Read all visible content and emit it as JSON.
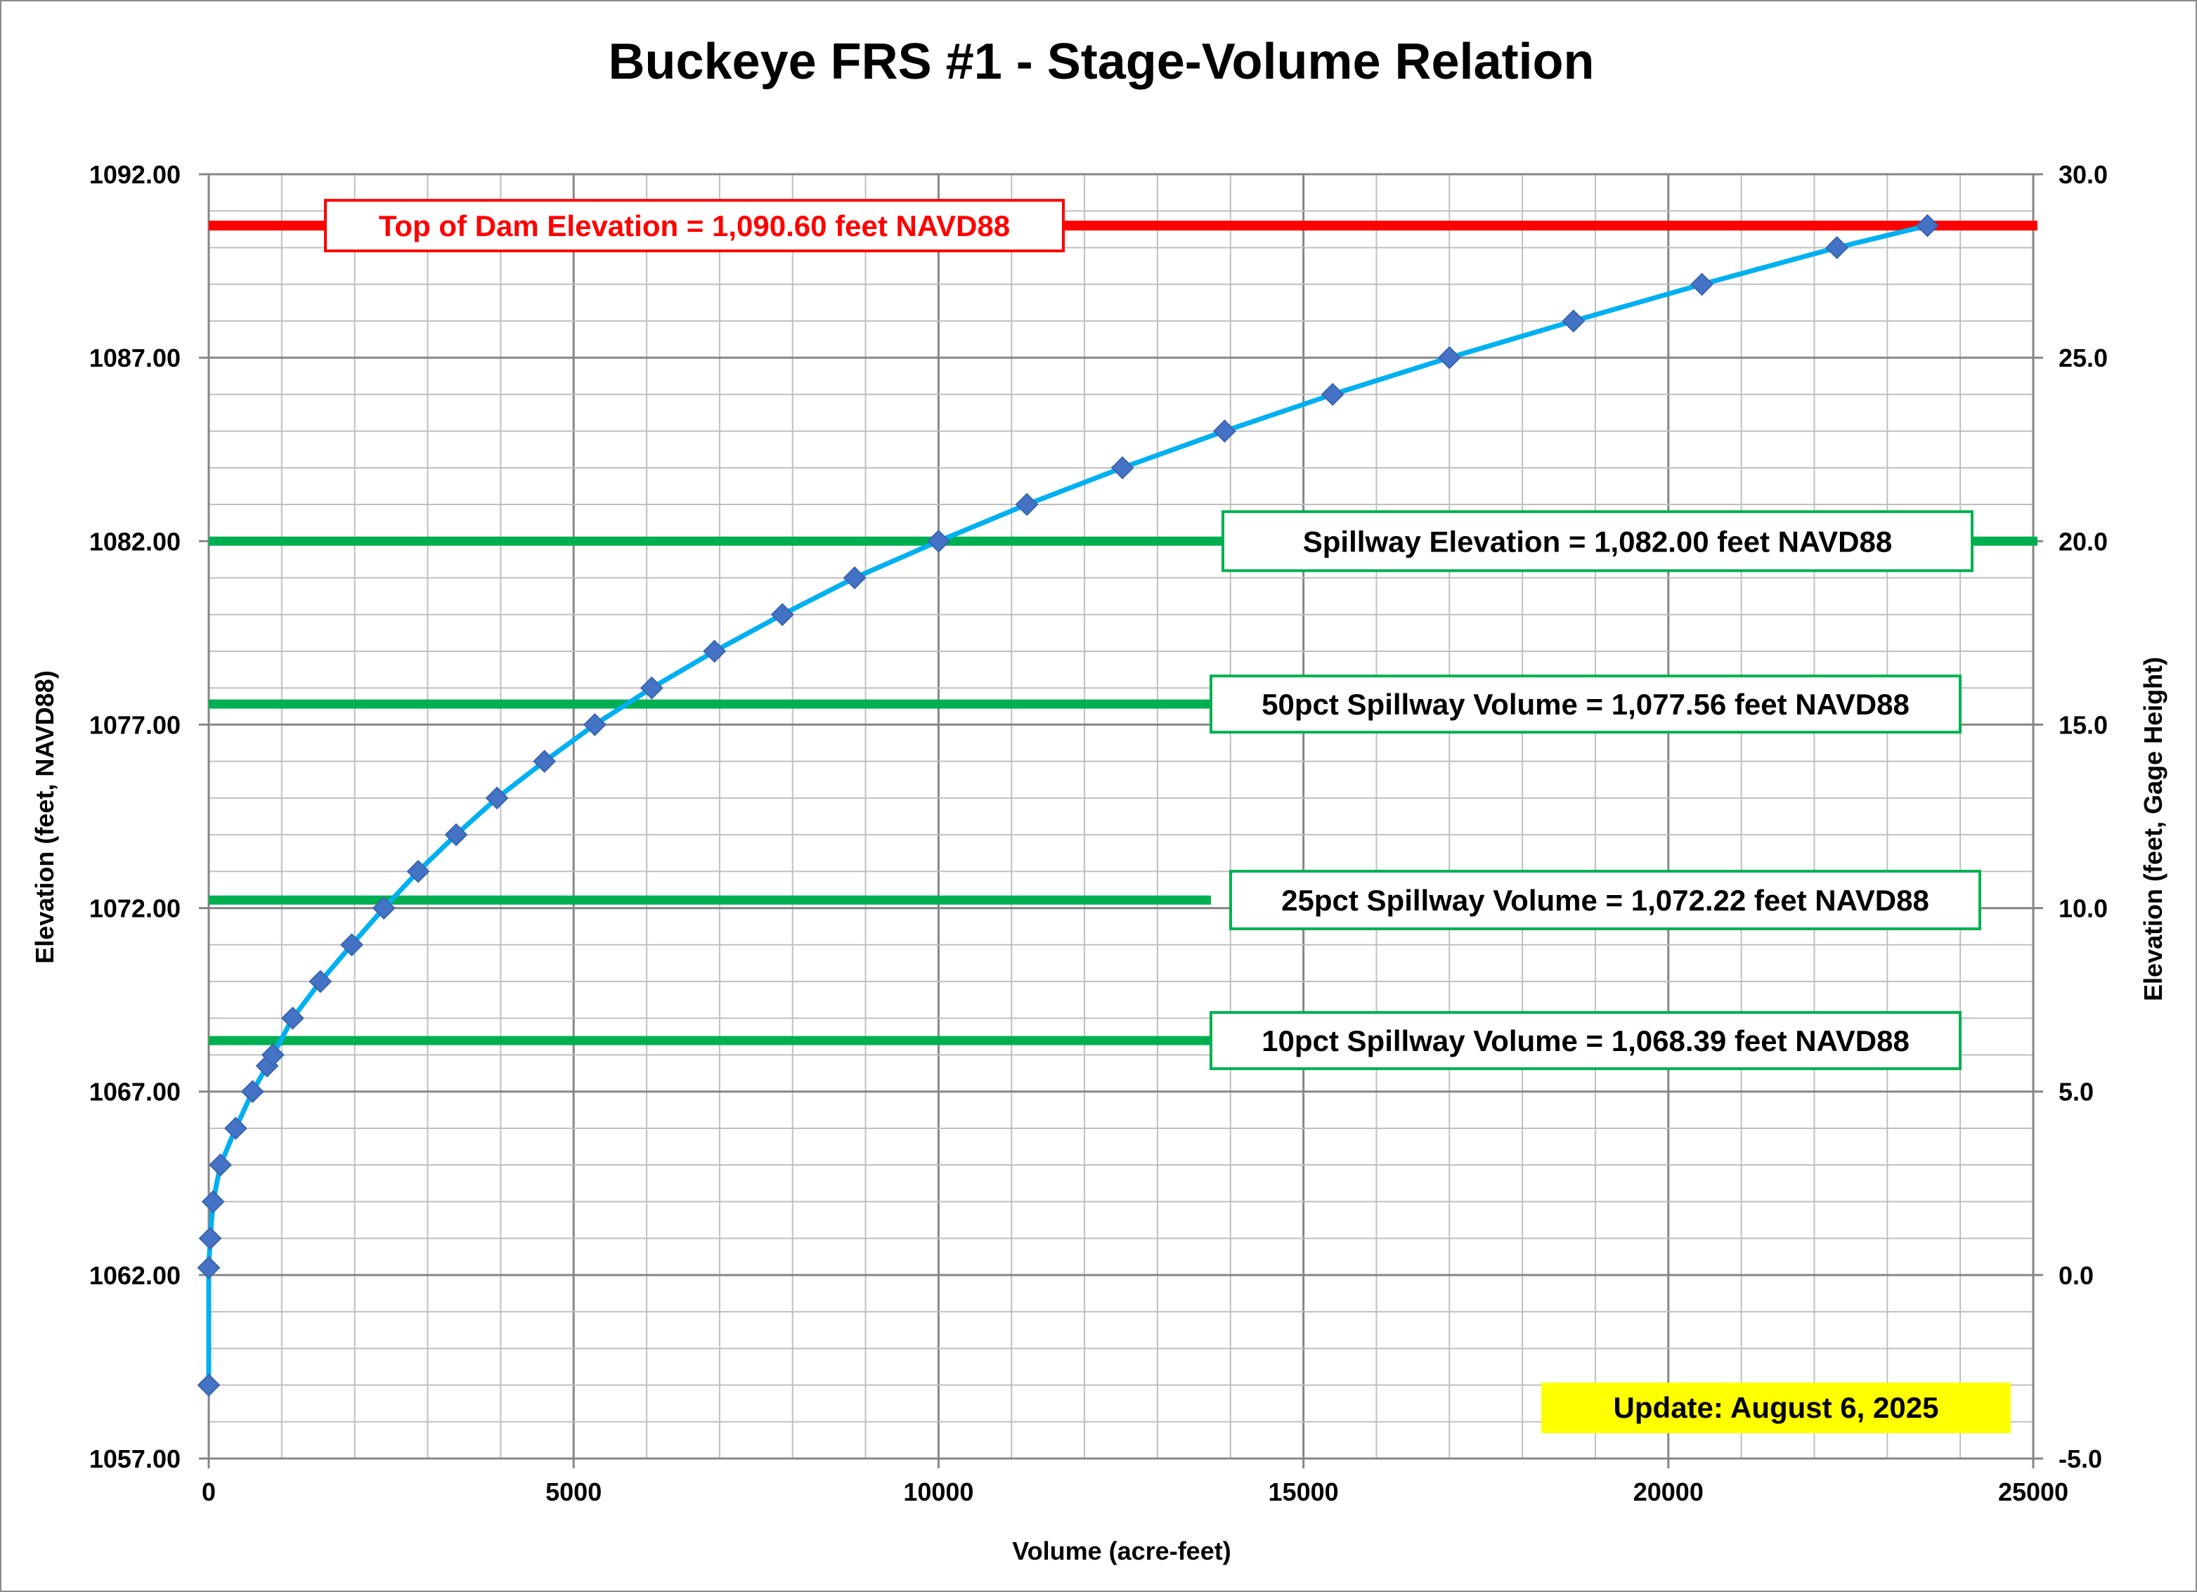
{
  "chart_data": {
    "type": "scatter",
    "title": "Buckeye FRS #1 - Stage-Volume Relation",
    "xlabel": "Volume (acre-feet)",
    "ylabel": "Elevation (feet, NAVD88)",
    "y2label": "Elevation (feet, Gage Height)",
    "xlim": [
      0,
      25000
    ],
    "ylim": [
      1057,
      1092
    ],
    "y2lim": [
      -5,
      30
    ],
    "x_ticks": [
      "0",
      "5000",
      "10000",
      "15000",
      "20000",
      "25000"
    ],
    "y_ticks": [
      "1057.00",
      "1062.00",
      "1067.00",
      "1072.00",
      "1077.00",
      "1082.00",
      "1087.00",
      "1092.00"
    ],
    "y2_ticks": [
      "-5.0",
      "0.0",
      "5.0",
      "10.0",
      "15.0",
      "20.0",
      "25.0",
      "30.0"
    ],
    "grid": true,
    "series": [
      {
        "color": "#00b0f0",
        "marker_color": "#4472c4",
        "x": [
          0,
          0,
          20,
          60,
          160,
          370,
          600,
          800,
          880,
          1150,
          1530,
          1960,
          2400,
          2870,
          3390,
          3950,
          4600,
          5290,
          6070,
          6930,
          7860,
          8850,
          10000,
          11210,
          12520,
          13920,
          15400,
          17000,
          18700,
          20460,
          22310,
          23550
        ],
        "y": [
          1059,
          1062.2,
          1063,
          1064,
          1065,
          1066,
          1067,
          1067.7,
          1068,
          1069,
          1070,
          1071,
          1072,
          1073,
          1074,
          1075,
          1076,
          1077,
          1078,
          1079,
          1080,
          1081,
          1082,
          1083,
          1084,
          1085,
          1086,
          1087,
          1088,
          1089,
          1090,
          1090.6
        ]
      }
    ],
    "reference_lines": [
      {
        "y": 1090.6,
        "label": "Top of Dam Elevation = 1,090.60 feet NAVD88",
        "color": "#ff0000",
        "x_start": 0
      },
      {
        "y": 1082.0,
        "label": "Spillway Elevation = 1,082.00 feet NAVD88",
        "color": "#00b050",
        "x_start": 0
      },
      {
        "y": 1077.56,
        "label": "50pct Spillway Volume = 1,077.56 feet NAVD88",
        "color": "#00b050",
        "x_start": 0
      },
      {
        "y": 1072.22,
        "label": "25pct Spillway Volume = 1,072.22 feet NAVD88",
        "color": "#00b050",
        "x_start": 0
      },
      {
        "y": 1068.39,
        "label": "10pct Spillway Volume = 1,068.39 feet NAVD88",
        "color": "#00b050",
        "x_start": 0
      }
    ],
    "annotation": "Update: August 6, 2025",
    "annotation_color": "#ffff00"
  }
}
